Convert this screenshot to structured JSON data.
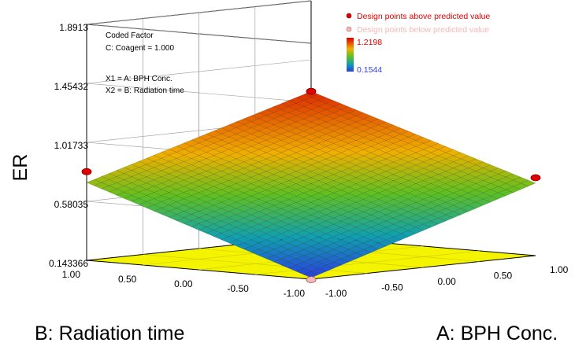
{
  "chart_data": {
    "type": "surface3d",
    "zlabel": "ER",
    "xlabel": "A: BPH Conc.",
    "ylabel": "B: Radiation time",
    "z_ticks": [
      "1.8913",
      "1.45432",
      "1.01733",
      "0.58035",
      "0.143366"
    ],
    "x_ticks": [
      "-1.00",
      "-0.50",
      "0.00",
      "0.50",
      "1.00"
    ],
    "y_ticks": [
      "-1.00",
      "-0.50",
      "0.00",
      "0.50",
      "1.00"
    ],
    "zlim": [
      0.143366,
      1.8913
    ],
    "coded_factor": {
      "heading": "Coded Factor",
      "line": "C: Coagent = 1.000"
    },
    "axis_notes": [
      "X1 = A: BPH Conc.",
      "X2 = B: Radiation time"
    ],
    "legend": {
      "above": "Design points above predicted value",
      "below": "Design points below predicted value",
      "above_color": "#e00000",
      "below_color": "#f4b8b8"
    },
    "color_scale": {
      "max": "1.2198",
      "min": "0.1544",
      "max_color": "#dd0000",
      "min_color": "#2a3ee0"
    },
    "surface": {
      "grid": {
        "a": [
          -1.0,
          -0.5,
          0.0,
          0.5,
          1.0
        ],
        "b": [
          -1.0,
          -0.5,
          0.0,
          0.5,
          1.0
        ]
      },
      "corner_values": {
        "a-1_b-1": 0.1544,
        "a1_b-1": 0.68,
        "a-1_b1": 0.72,
        "a1_b1": 1.2198
      }
    },
    "design_points": [
      {
        "a": -1.0,
        "b": -1.0,
        "z": 0.14,
        "position": "below"
      },
      {
        "a": 1.0,
        "b": -1.0,
        "z": 0.72,
        "position": "above"
      },
      {
        "a": -1.0,
        "b": 1.0,
        "z": 0.8,
        "position": "above"
      },
      {
        "a": 1.0,
        "b": 1.0,
        "z": 1.22,
        "position": "above"
      }
    ]
  }
}
